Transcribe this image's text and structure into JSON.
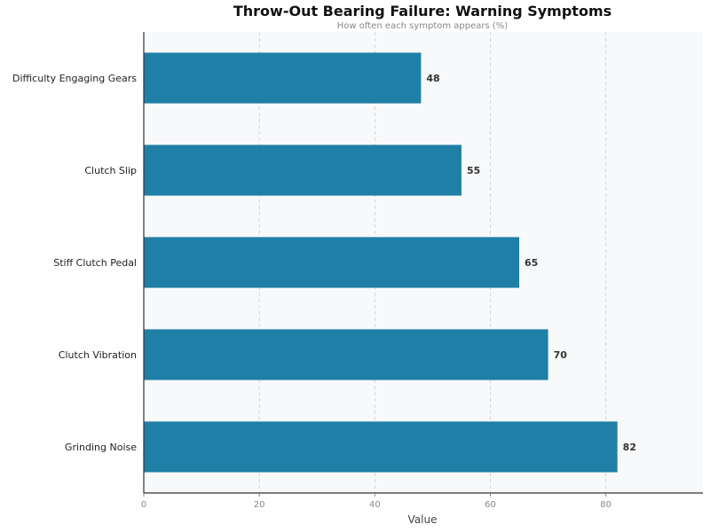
{
  "chart_data": {
    "type": "bar",
    "orientation": "horizontal",
    "title": "Throw-Out Bearing Failure: Warning Symptoms",
    "subtitle": "How often each symptom appears (%)",
    "xlabel": "Value",
    "ylabel": "",
    "categories": [
      "Grinding Noise",
      "Clutch Vibration",
      "Stiff Clutch Pedal",
      "Clutch Slip",
      "Difficulty Engaging Gears"
    ],
    "values": [
      82,
      70,
      65,
      55,
      48
    ],
    "xlim": [
      0,
      96.8
    ],
    "xticks": [
      0,
      20,
      40,
      60,
      80
    ],
    "grid": "vertical dashed",
    "bar_color": "#1f7fa6",
    "background_color": "#f7f9fb",
    "data_labels": true
  }
}
